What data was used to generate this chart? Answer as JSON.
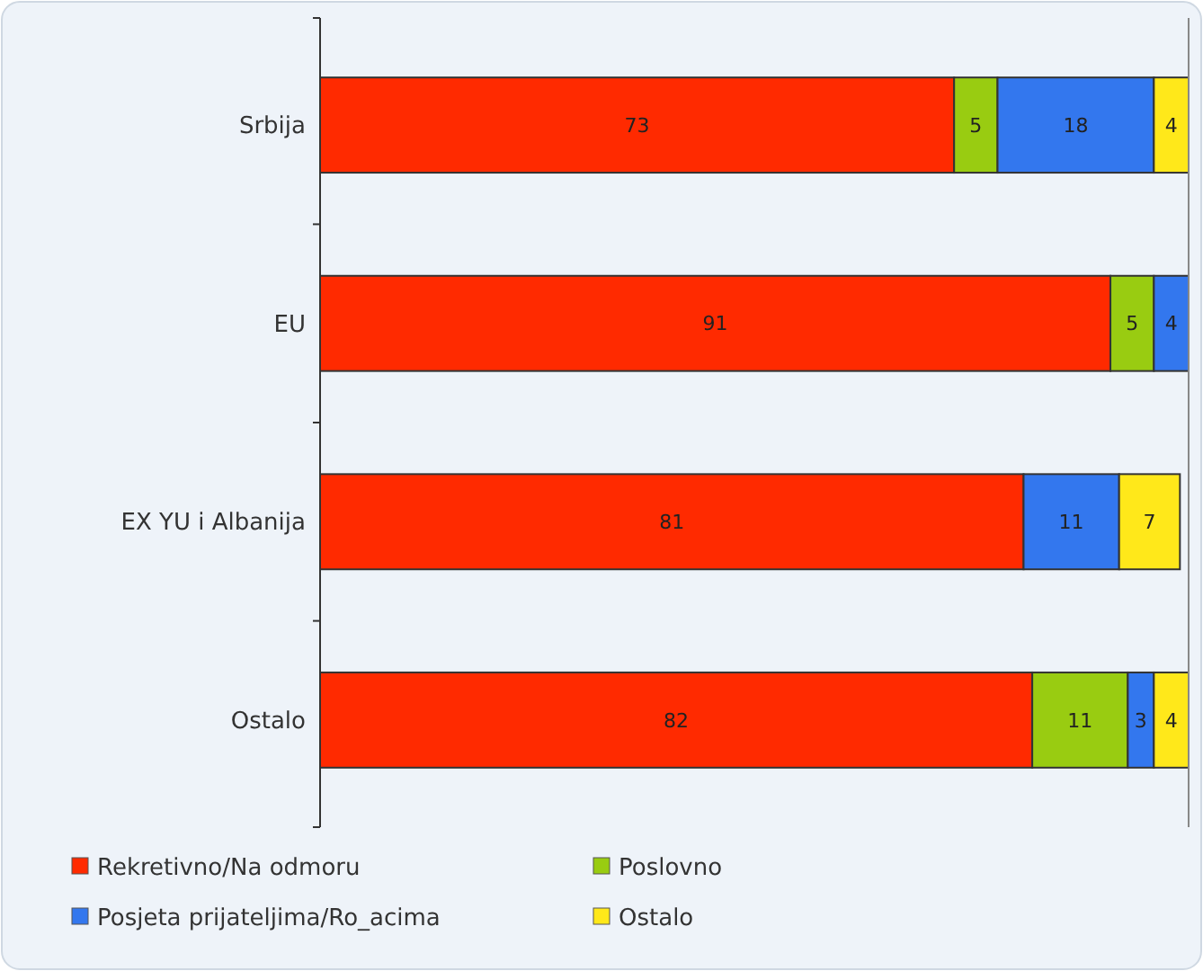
{
  "chart_data": {
    "type": "bar",
    "orientation": "horizontal",
    "stacked": true,
    "data_labels": true,
    "legend": "bottom",
    "tick_labels": "y",
    "xlim": [
      0,
      100
    ],
    "categories": [
      "Srbija",
      "EU",
      "EX YU i Albanija",
      "Ostalo"
    ],
    "series": [
      {
        "name": "Rekretivno/Na odmoru",
        "color": "#ff2a00",
        "values": [
          73,
          91,
          81,
          82
        ]
      },
      {
        "name": "Poslovno",
        "color": "#99cc11",
        "values": [
          5,
          5,
          null,
          11
        ]
      },
      {
        "name": "Posjeta prijateljima/Ro_acima",
        "color": "#3377ee",
        "values": [
          18,
          4,
          11,
          3
        ]
      },
      {
        "name": "Ostalo",
        "color": "#ffe81a",
        "values": [
          4,
          null,
          7,
          4
        ]
      }
    ]
  }
}
